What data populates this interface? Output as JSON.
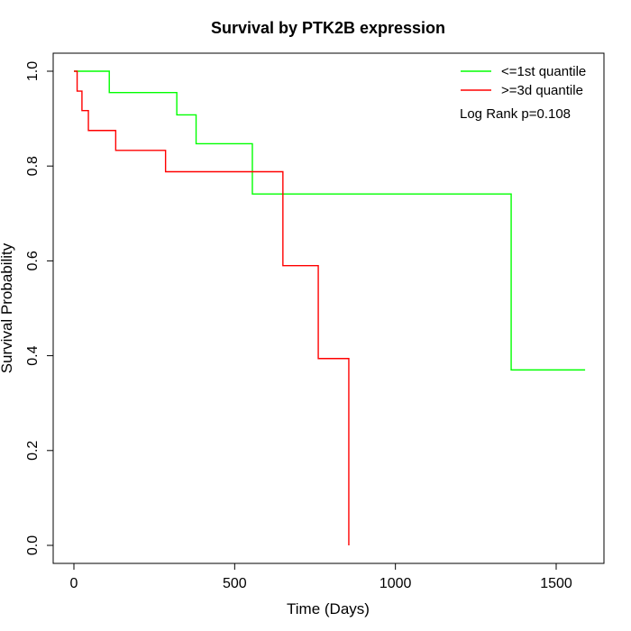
{
  "chart_data": {
    "type": "line",
    "title": "Survival by PTK2B expression",
    "xlabel": "Time (Days)",
    "ylabel": "Survival Probability",
    "xlim": [
      0,
      1590
    ],
    "ylim": [
      0,
      1
    ],
    "x_ticks": [
      0,
      500,
      1000,
      1500
    ],
    "y_ticks": [
      0.0,
      0.2,
      0.4,
      0.6,
      0.8,
      1.0
    ],
    "x_tick_labels": [
      "0",
      "500",
      "1000",
      "1500"
    ],
    "y_tick_labels": [
      "0.0",
      "0.2",
      "0.4",
      "0.6",
      "0.8",
      "1.0"
    ],
    "grid": false,
    "legend_position": "top-right",
    "annotation": "Log Rank p=0.108",
    "series": [
      {
        "name": "<=1st quantile",
        "color": "#00ff00",
        "step": "post",
        "x": [
          0,
          110,
          320,
          380,
          555,
          1360,
          1590
        ],
        "y": [
          1.0,
          0.955,
          0.908,
          0.847,
          0.741,
          0.37,
          0.37
        ]
      },
      {
        "name": ">=3d quantile",
        "color": "#ff0000",
        "step": "post",
        "x": [
          0,
          10,
          25,
          45,
          130,
          285,
          650,
          760,
          855
        ],
        "y": [
          1.0,
          0.958,
          0.917,
          0.875,
          0.833,
          0.788,
          0.59,
          0.394,
          0.0
        ]
      }
    ]
  }
}
